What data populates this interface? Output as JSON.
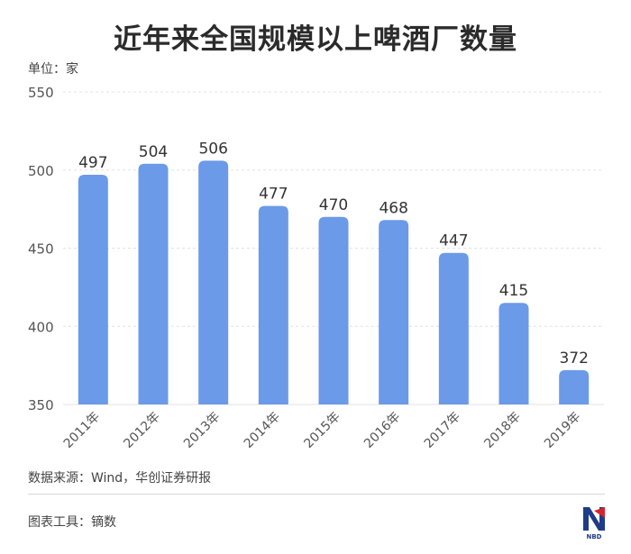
{
  "header": {
    "title": "近年来全国规模以上啤酒厂数量",
    "unit": "单位：家"
  },
  "footer": {
    "source": "数据来源：Wind，华创证券研报",
    "tool": "图表工具：镝数",
    "logo_text": "NBD"
  },
  "colors": {
    "bar": "#6b9ae8",
    "grid": "#e3e3e3",
    "axis_text": "#555555"
  },
  "chart_data": {
    "type": "bar",
    "title": "近年来全国规模以上啤酒厂数量",
    "ylabel": "单位：家",
    "categories": [
      "2011年",
      "2012年",
      "2013年",
      "2014年",
      "2015年",
      "2016年",
      "2017年",
      "2018年",
      "2019年"
    ],
    "values": [
      497,
      504,
      506,
      477,
      470,
      468,
      447,
      415,
      372
    ],
    "yticks": [
      350,
      400,
      450,
      500,
      550
    ],
    "ylim": [
      350,
      550
    ],
    "grid": true,
    "data_labels": true
  }
}
